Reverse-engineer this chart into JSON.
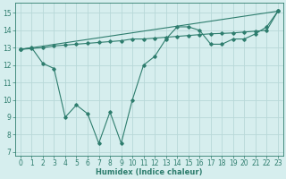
{
  "line1_x": [
    0,
    1,
    2,
    3,
    4,
    5,
    6,
    7,
    8,
    9,
    10,
    11,
    12,
    13,
    14,
    15,
    16,
    17,
    18,
    19,
    20,
    21,
    22,
    23
  ],
  "line1_y": [
    12.9,
    13.0,
    12.1,
    11.8,
    9.0,
    9.7,
    9.2,
    7.5,
    9.3,
    7.5,
    10.0,
    12.0,
    12.5,
    13.5,
    14.2,
    14.2,
    14.0,
    13.2,
    13.2,
    13.5,
    13.5,
    13.8,
    14.2,
    15.1
  ],
  "line2_x": [
    0,
    23
  ],
  "line2_y": [
    12.9,
    15.1
  ],
  "line3_x": [
    0,
    1,
    2,
    3,
    4,
    5,
    6,
    7,
    8,
    9,
    10,
    11,
    12,
    13,
    14,
    15,
    16,
    17,
    18,
    19,
    20,
    21,
    22,
    23
  ],
  "line3_y": [
    12.9,
    12.95,
    13.0,
    13.1,
    13.15,
    13.2,
    13.25,
    13.3,
    13.35,
    13.4,
    13.5,
    13.5,
    13.55,
    13.6,
    13.65,
    13.7,
    13.75,
    13.8,
    13.82,
    13.85,
    13.9,
    13.95,
    14.0,
    15.1
  ],
  "color": "#2e7d6e",
  "bg_color": "#d6eeee",
  "grid_color": "#b8d8d8",
  "xlabel": "Humidex (Indice chaleur)",
  "xlim": [
    -0.5,
    23.5
  ],
  "ylim": [
    6.8,
    15.6
  ],
  "yticks": [
    7,
    8,
    9,
    10,
    11,
    12,
    13,
    14,
    15
  ],
  "xticks": [
    0,
    1,
    2,
    3,
    4,
    5,
    6,
    7,
    8,
    9,
    10,
    11,
    12,
    13,
    14,
    15,
    16,
    17,
    18,
    19,
    20,
    21,
    22,
    23
  ],
  "marker": "D",
  "markersize": 1.8,
  "linewidth": 0.8,
  "font_size": 5.5
}
